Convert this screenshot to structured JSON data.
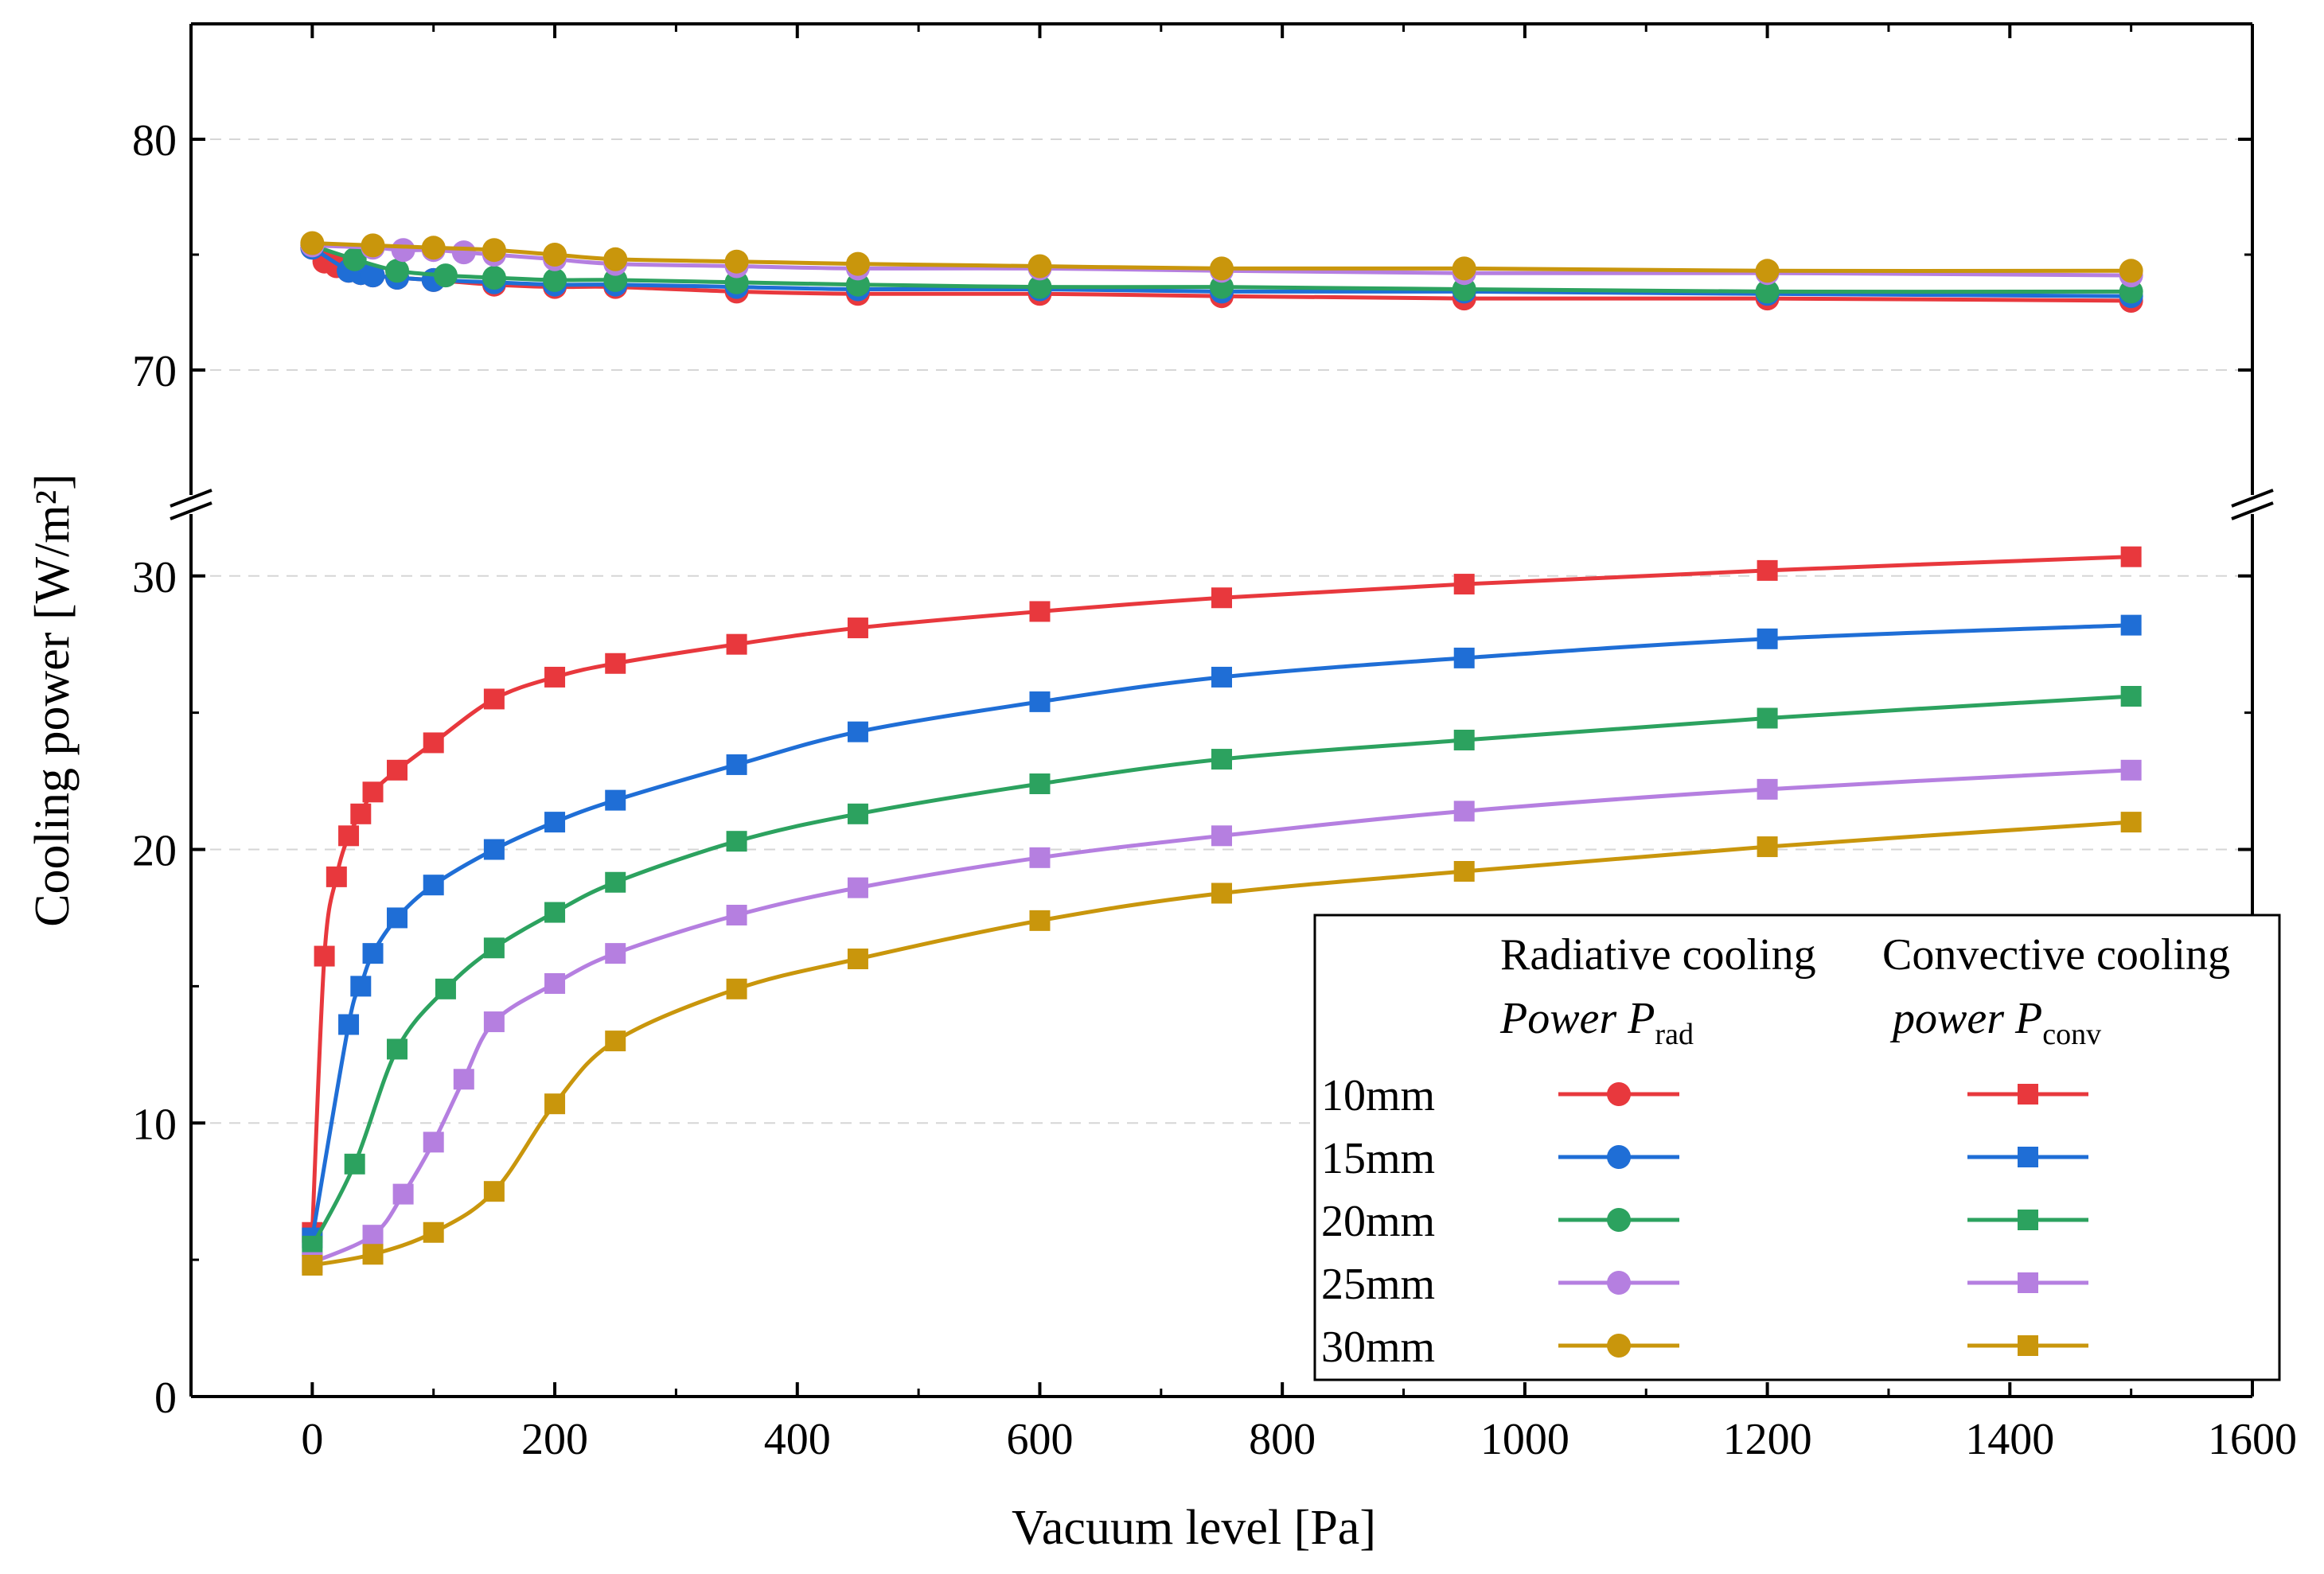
{
  "chart_data": {
    "type": "line",
    "xlabel": "Vacuum level [Pa]",
    "ylabel": "Cooling power [W/m²]",
    "xlim": [
      -100,
      1600
    ],
    "xticks": [
      "0",
      "200",
      "400",
      "600",
      "800",
      "1000",
      "1200",
      "1400",
      "1600"
    ],
    "y_break": {
      "lower_segment": [
        0,
        32
      ],
      "upper_segment": [
        65,
        85
      ]
    },
    "yticks_lower": [
      "0",
      "10",
      "20",
      "30"
    ],
    "yticks_upper": [
      "70",
      "80"
    ],
    "grid": "horizontal dashed",
    "legend": {
      "placement": "bottom-right",
      "col1_header_line1": "Radiative cooling",
      "col1_header_line2": "Power P",
      "col1_header_sub": "rad",
      "col2_header_line1": "Convective cooling",
      "col2_header_line2": "power P",
      "col2_header_sub": "conv",
      "rows": [
        "10mm",
        "15mm",
        "20mm",
        "25mm",
        "30mm"
      ]
    },
    "colors": [
      "#e8383d",
      "#1f6ed6",
      "#2ca25f",
      "#b57fe0",
      "#c9960c"
    ],
    "radiative_series": [
      {
        "name": "10mm",
        "marker": "circle",
        "x": [
          0,
          10,
          20,
          30,
          40,
          50,
          70,
          100,
          150,
          200,
          250,
          350,
          450,
          600,
          750,
          950,
          1200,
          1500
        ],
        "y": [
          75.3,
          74.7,
          74.5,
          74.3,
          74.2,
          74.1,
          74.0,
          73.9,
          73.7,
          73.6,
          73.6,
          73.4,
          73.3,
          73.3,
          73.2,
          73.1,
          73.1,
          73.0
        ]
      },
      {
        "name": "15mm",
        "marker": "circle",
        "x": [
          0,
          30,
          40,
          50,
          70,
          100,
          150,
          200,
          250,
          350,
          450,
          600,
          750,
          950,
          1200,
          1500
        ],
        "y": [
          75.3,
          74.3,
          74.2,
          74.1,
          74.0,
          73.9,
          73.8,
          73.7,
          73.7,
          73.6,
          73.5,
          73.5,
          73.4,
          73.4,
          73.3,
          73.2
        ]
      },
      {
        "name": "20mm",
        "marker": "circle",
        "x": [
          0,
          35,
          70,
          110,
          150,
          200,
          250,
          350,
          450,
          600,
          750,
          950,
          1200,
          1500
        ],
        "y": [
          75.4,
          74.8,
          74.3,
          74.1,
          74.0,
          73.9,
          73.9,
          73.8,
          73.7,
          73.6,
          73.6,
          73.5,
          73.4,
          73.4
        ]
      },
      {
        "name": "25mm",
        "marker": "circle",
        "x": [
          0,
          50,
          75,
          100,
          125,
          150,
          200,
          250,
          350,
          450,
          600,
          750,
          950,
          1200,
          1500
        ],
        "y": [
          75.4,
          75.3,
          75.2,
          75.2,
          75.1,
          75.0,
          74.8,
          74.6,
          74.5,
          74.4,
          74.4,
          74.3,
          74.2,
          74.2,
          74.1
        ]
      },
      {
        "name": "30mm",
        "marker": "circle",
        "x": [
          0,
          50,
          100,
          150,
          200,
          250,
          350,
          450,
          600,
          750,
          950,
          1200,
          1500
        ],
        "y": [
          75.5,
          75.4,
          75.3,
          75.2,
          75.0,
          74.8,
          74.7,
          74.6,
          74.5,
          74.4,
          74.4,
          74.3,
          74.3
        ]
      }
    ],
    "convective_series": [
      {
        "name": "10mm",
        "marker": "square",
        "x": [
          0,
          10,
          20,
          30,
          40,
          50,
          70,
          100,
          150,
          200,
          250,
          350,
          450,
          600,
          750,
          950,
          1200,
          1500
        ],
        "y": [
          6.0,
          16.1,
          19.0,
          20.5,
          21.3,
          22.1,
          22.9,
          23.9,
          25.5,
          26.3,
          26.8,
          27.5,
          28.1,
          28.7,
          29.2,
          29.7,
          30.2,
          30.7
        ]
      },
      {
        "name": "15mm",
        "marker": "square",
        "x": [
          0,
          30,
          40,
          50,
          70,
          100,
          150,
          200,
          250,
          350,
          450,
          600,
          750,
          950,
          1200,
          1500
        ],
        "y": [
          5.8,
          13.6,
          15.0,
          16.2,
          17.5,
          18.7,
          20.0,
          21.0,
          21.8,
          23.1,
          24.3,
          25.4,
          26.3,
          27.0,
          27.7,
          28.2
        ]
      },
      {
        "name": "20mm",
        "marker": "square",
        "x": [
          0,
          35,
          70,
          110,
          150,
          200,
          250,
          350,
          450,
          600,
          750,
          950,
          1200,
          1500
        ],
        "y": [
          5.5,
          8.5,
          12.7,
          14.9,
          16.4,
          17.7,
          18.8,
          20.3,
          21.3,
          22.4,
          23.3,
          24.0,
          24.8,
          25.6
        ]
      },
      {
        "name": "25mm",
        "marker": "square",
        "x": [
          0,
          50,
          75,
          100,
          125,
          150,
          200,
          250,
          350,
          450,
          600,
          750,
          950,
          1200,
          1500
        ],
        "y": [
          4.9,
          5.9,
          7.4,
          9.3,
          11.6,
          13.7,
          15.1,
          16.2,
          17.6,
          18.6,
          19.7,
          20.5,
          21.4,
          22.2,
          22.9
        ]
      },
      {
        "name": "30mm",
        "marker": "square",
        "x": [
          0,
          50,
          100,
          150,
          200,
          250,
          350,
          450,
          600,
          750,
          950,
          1200,
          1500
        ],
        "y": [
          4.8,
          5.2,
          6.0,
          7.5,
          10.7,
          13.0,
          14.9,
          16.0,
          17.4,
          18.4,
          19.2,
          20.1,
          21.0
        ]
      }
    ]
  }
}
